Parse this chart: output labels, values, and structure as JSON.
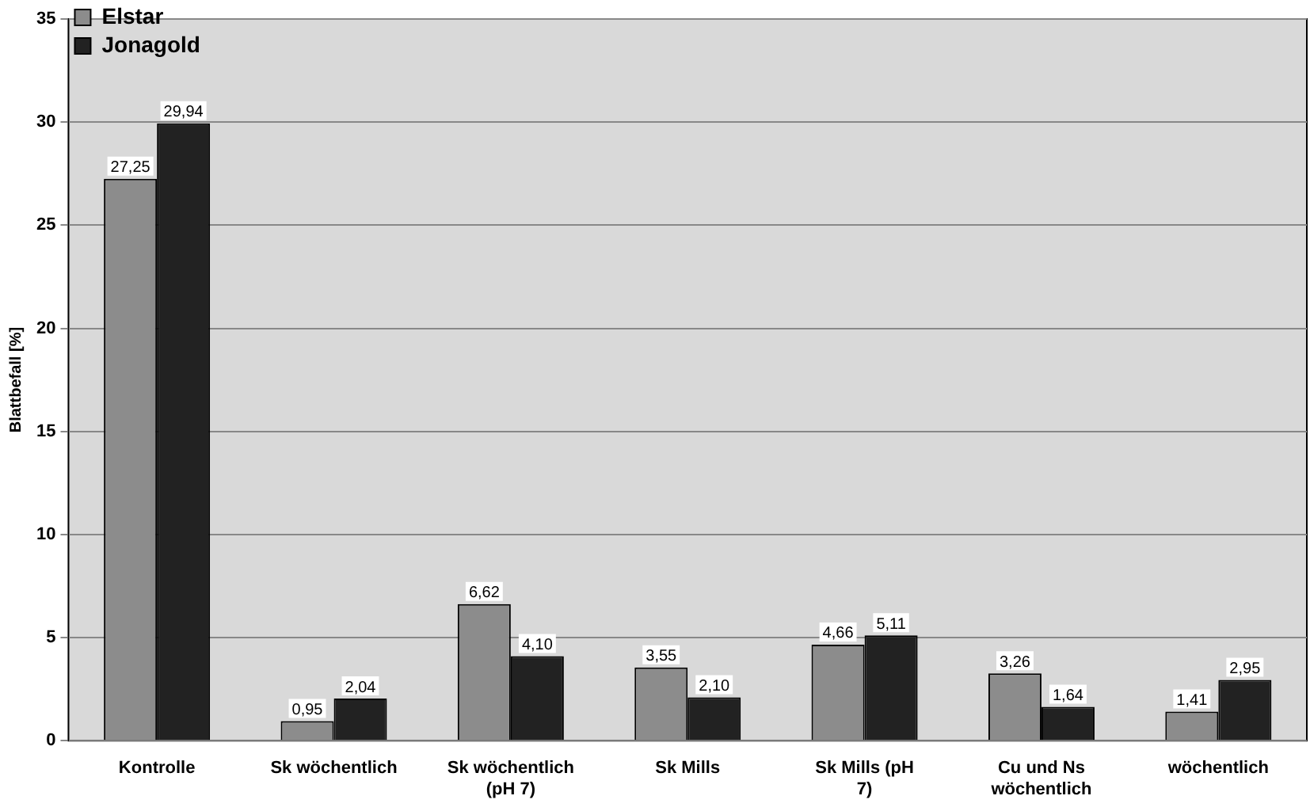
{
  "chart_data": {
    "type": "bar",
    "ylabel": "Blattbefall [%]",
    "categories": [
      "Kontrolle",
      "Sk wöchentlich",
      "Sk wöchentlich (pH 7)",
      "Sk Mills",
      "Sk Mills (pH 7)",
      "Cu und Ns wöchentlich",
      "wöchentlich"
    ],
    "series": [
      {
        "name": "Elstar",
        "color": "#8c8c8c",
        "values": [
          27.25,
          0.95,
          6.62,
          3.55,
          4.66,
          3.26,
          1.41
        ],
        "value_labels": [
          "27,25",
          "0,95",
          "6,62",
          "3,55",
          "4,66",
          "3,26",
          "1,41"
        ]
      },
      {
        "name": "Jonagold",
        "color": "#222222",
        "values": [
          29.94,
          2.04,
          4.1,
          2.1,
          5.11,
          1.64,
          2.95
        ],
        "value_labels": [
          "29,94",
          "2,04",
          "4,10",
          "2,10",
          "5,11",
          "1,64",
          "2,95"
        ]
      }
    ],
    "ylim": [
      0,
      35
    ],
    "yticks": [
      0,
      5,
      10,
      15,
      20,
      25,
      30,
      35
    ],
    "grid": "y",
    "legend": "top left"
  }
}
